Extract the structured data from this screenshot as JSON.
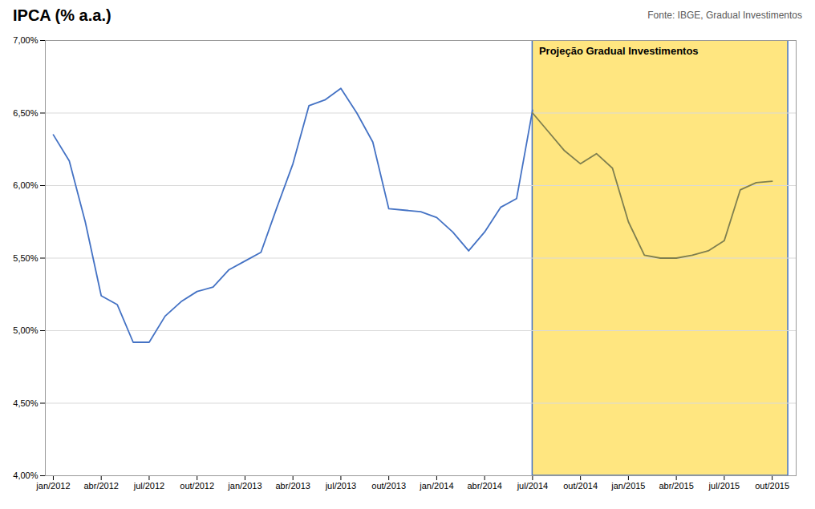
{
  "chart_data": {
    "type": "line",
    "title": "IPCA (% a.a.)",
    "caption": "Fonte: IBGE, Gradual Investimentos",
    "series": [
      {
        "x": [
          0,
          1,
          2,
          3,
          4,
          5,
          6,
          7,
          8,
          9,
          10,
          11,
          12,
          13,
          14,
          15,
          16,
          17,
          18,
          19,
          20,
          21,
          22,
          23,
          24,
          25,
          26,
          27,
          28,
          29,
          30
        ],
        "values": [
          6.35,
          6.17,
          5.75,
          5.24,
          5.18,
          4.92,
          4.92,
          5.1,
          5.2,
          5.27,
          5.3,
          5.42,
          5.48,
          5.54,
          5.85,
          6.15,
          6.55,
          6.59,
          6.67,
          6.5,
          6.3,
          5.84,
          5.83,
          5.82,
          5.78,
          5.68,
          5.55,
          5.68,
          5.85,
          5.91,
          6.52
        ],
        "color": "#4472C4"
      },
      {
        "x": [
          30,
          31,
          32,
          33,
          34,
          35,
          36,
          37,
          38,
          39,
          40,
          41,
          42,
          43,
          44,
          45
        ],
        "values": [
          6.5,
          6.37,
          6.24,
          6.15,
          6.22,
          6.12,
          5.75,
          5.52,
          5.5,
          5.5,
          5.52,
          5.55,
          5.62,
          5.97,
          6.02,
          6.03
        ],
        "color": "#7F7F4F"
      }
    ],
    "spans": [
      {
        "x0": 30,
        "x1": 46,
        "color": "#FFE680",
        "edge_color": "#4472C4",
        "label": "Projeção Gradual Investimentos"
      }
    ],
    "xlim": [
      -0.5,
      46.5
    ],
    "xticks": [
      {
        "value": 0,
        "label": "jan/2012"
      },
      {
        "value": 3,
        "label": "abr/2012"
      },
      {
        "value": 6,
        "label": "jul/2012"
      },
      {
        "value": 9,
        "label": "out/2012"
      },
      {
        "value": 12,
        "label": "jan/2013"
      },
      {
        "value": 15,
        "label": "abr/2013"
      },
      {
        "value": 18,
        "label": "jul/2013"
      },
      {
        "value": 21,
        "label": "out/2013"
      },
      {
        "value": 24,
        "label": "jan/2014"
      },
      {
        "value": 27,
        "label": "abr/2014"
      },
      {
        "value": 30,
        "label": "jul/2014"
      },
      {
        "value": 33,
        "label": "out/2014"
      },
      {
        "value": 36,
        "label": "jan/2015"
      },
      {
        "value": 39,
        "label": "abr/2015"
      },
      {
        "value": 42,
        "label": "jul/2015"
      },
      {
        "value": 45,
        "label": "out/2015"
      }
    ],
    "ylim": [
      4.0,
      7.0
    ],
    "yticks": [
      {
        "value": 4.0,
        "label": "4,00%"
      },
      {
        "value": 4.5,
        "label": "4,50%"
      },
      {
        "value": 5.0,
        "label": "5,00%"
      },
      {
        "value": 5.5,
        "label": "5,50%"
      },
      {
        "value": 6.0,
        "label": "6,00%"
      },
      {
        "value": 6.5,
        "label": "6,50%"
      },
      {
        "value": 7.0,
        "label": "7,00%"
      }
    ],
    "grid": "y"
  }
}
